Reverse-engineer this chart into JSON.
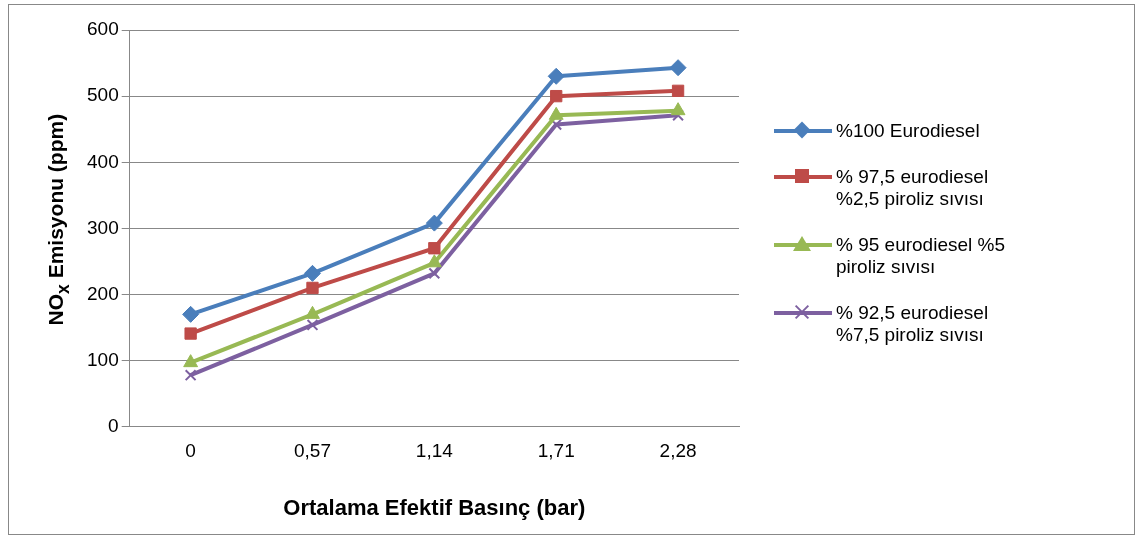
{
  "chart_data": {
    "type": "line",
    "xlabel": "Ortalama Efektif Basınç (bar)",
    "ylabel": "NO$_{x}$ Emisyonu (ppm)",
    "categories": [
      "0",
      "0,57",
      "1,14",
      "1,71",
      "2,28"
    ],
    "ylim": [
      0,
      600
    ],
    "yticks": [
      0,
      100,
      200,
      300,
      400,
      500,
      600
    ],
    "grid": "y",
    "legend": "right",
    "line_style": "solid",
    "series": [
      {
        "name": "%100 Eurodiesel",
        "color": "#4a7ebb",
        "marker": "diamond",
        "values": [
          170,
          232,
          308,
          530,
          543
        ]
      },
      {
        "name": "% 97,5 eurodiesel %2,5 piroliz sıvısı",
        "color": "#be4b48",
        "marker": "square",
        "values": [
          141,
          210,
          270,
          500,
          508
        ]
      },
      {
        "name": "% 95 eurodiesel %5 piroliz sıvısı",
        "color": "#98b954",
        "marker": "triangle",
        "values": [
          97,
          170,
          248,
          471,
          478
        ]
      },
      {
        "name": "% 92,5 eurodiesel %7,5 piroliz sıvısı",
        "color": "#7d60a0",
        "marker": "cross",
        "values": [
          78,
          154,
          232,
          457,
          471
        ]
      }
    ]
  }
}
